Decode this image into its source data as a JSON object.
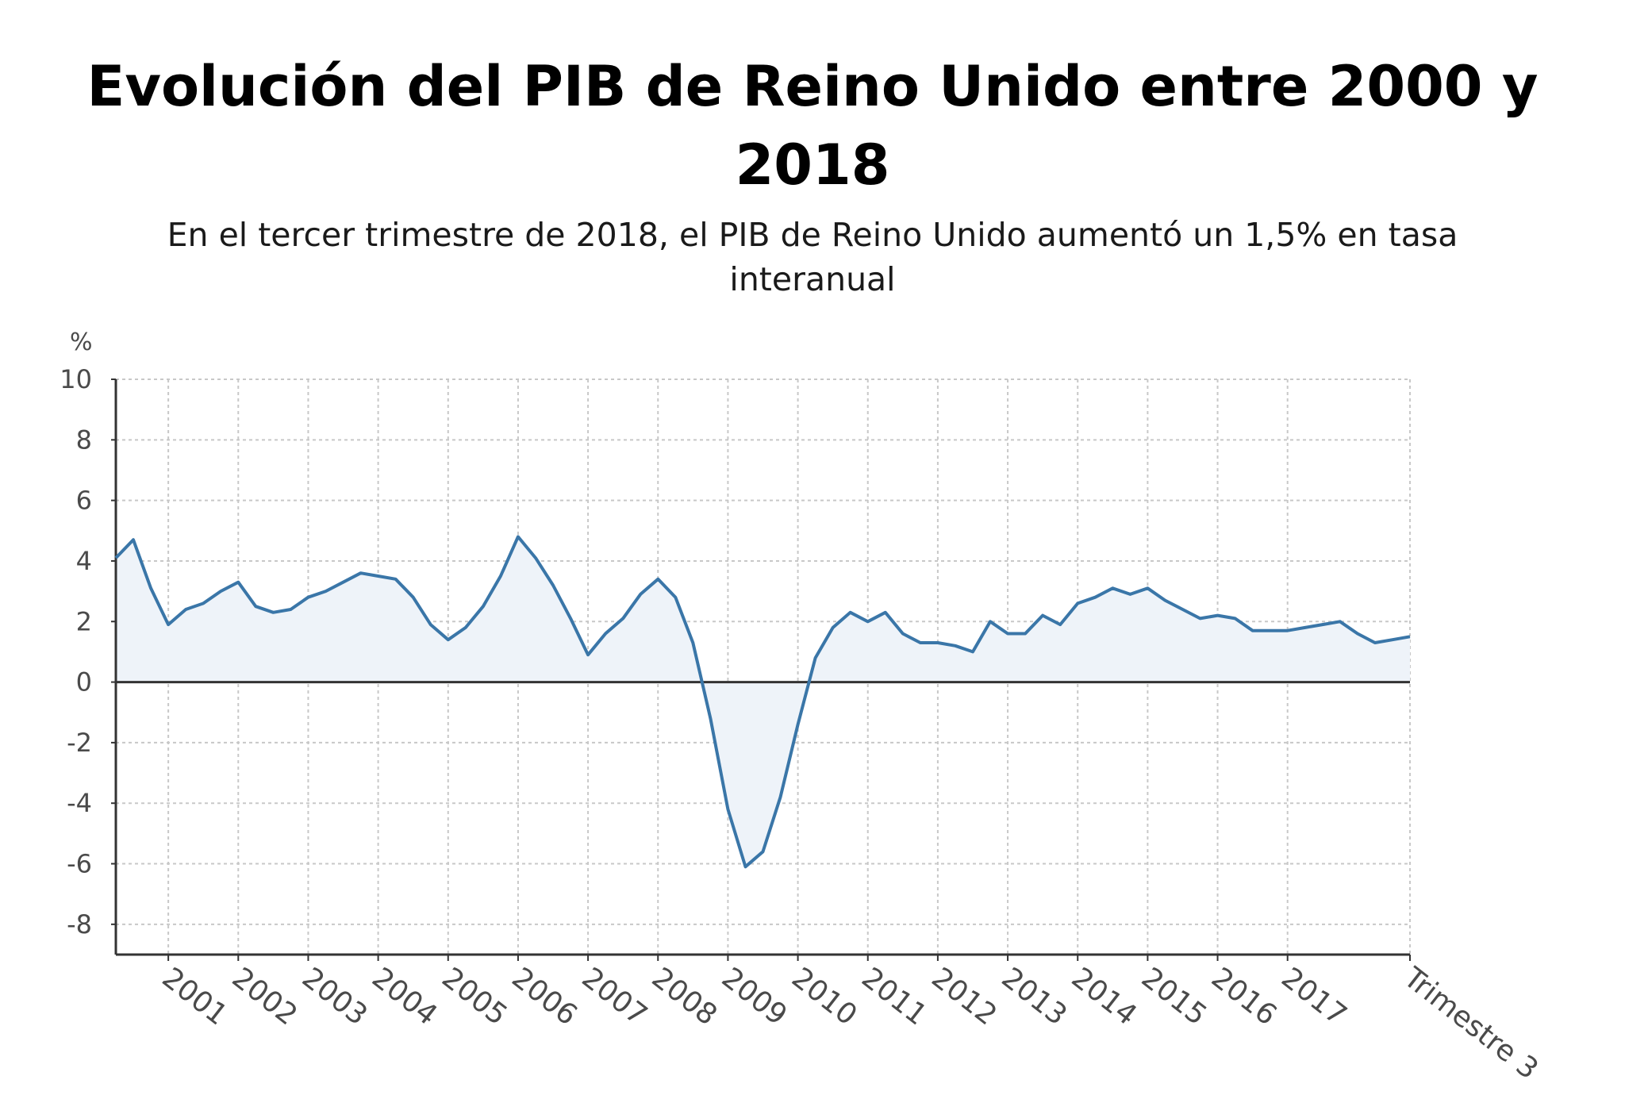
{
  "chart_data": {
    "type": "area",
    "title_line1": "Evolución del PIB de Reino Unido entre 2000 y",
    "title_line2": "2018",
    "subtitle_line1": "En el tercer trimestre de 2018, el PIB de Reino Unido aumentó un 1,5% en tasa",
    "subtitle_line2": "interanual",
    "ylabel": "%",
    "ylim": [
      -9,
      10
    ],
    "yticks": [
      "10",
      "8",
      "6",
      "4",
      "2",
      "0",
      "-2",
      "-4",
      "-6",
      "-8"
    ],
    "ytick_values": [
      10,
      8,
      6,
      4,
      2,
      0,
      -2,
      -4,
      -6,
      -8
    ],
    "xlim": [
      2000.0,
      2018.5
    ],
    "xtick_labels": [
      "2001",
      "2002",
      "2003",
      "2004",
      "2005",
      "2006",
      "2007",
      "2008",
      "2009",
      "2010",
      "2011",
      "2012",
      "2013",
      "2014",
      "2015",
      "2016",
      "2017",
      "Trimestre 3"
    ],
    "xtick_positions": [
      2000.75,
      2001.75,
      2002.75,
      2003.75,
      2004.75,
      2005.75,
      2006.75,
      2007.75,
      2008.75,
      2009.75,
      2010.75,
      2011.75,
      2012.75,
      2013.75,
      2014.75,
      2015.75,
      2016.75,
      2018.5
    ],
    "grid": true,
    "series": [
      {
        "color": "#3a76a8",
        "fill": "#eef3f9",
        "x": [
          2000.0,
          2000.25,
          2000.5,
          2000.75,
          2001.0,
          2001.25,
          2001.5,
          2001.75,
          2002.0,
          2002.25,
          2002.5,
          2002.75,
          2003.0,
          2003.25,
          2003.5,
          2003.75,
          2004.0,
          2004.25,
          2004.5,
          2004.75,
          2005.0,
          2005.25,
          2005.5,
          2005.75,
          2006.0,
          2006.25,
          2006.5,
          2006.75,
          2007.0,
          2007.25,
          2007.5,
          2007.75,
          2008.0,
          2008.25,
          2008.5,
          2008.75,
          2009.0,
          2009.25,
          2009.5,
          2009.75,
          2010.0,
          2010.25,
          2010.5,
          2010.75,
          2011.0,
          2011.25,
          2011.5,
          2011.75,
          2012.0,
          2012.25,
          2012.5,
          2012.75,
          2013.0,
          2013.25,
          2013.5,
          2013.75,
          2014.0,
          2014.25,
          2014.5,
          2014.75,
          2015.0,
          2015.25,
          2015.5,
          2015.75,
          2016.0,
          2016.25,
          2016.5,
          2016.75,
          2017.0,
          2017.25,
          2017.5,
          2017.75,
          2018.0,
          2018.25,
          2018.5
        ],
        "values": [
          4.1,
          4.7,
          3.1,
          1.9,
          2.4,
          2.6,
          3.0,
          3.3,
          2.5,
          2.3,
          2.4,
          2.8,
          3.0,
          3.3,
          3.6,
          3.5,
          3.4,
          2.8,
          1.9,
          1.4,
          1.8,
          2.5,
          3.5,
          4.8,
          4.1,
          3.2,
          2.1,
          0.9,
          1.6,
          2.1,
          2.9,
          3.4,
          2.8,
          1.3,
          -1.2,
          -4.2,
          -6.1,
          -5.6,
          -3.8,
          -1.4,
          0.8,
          1.8,
          2.3,
          2.0,
          2.3,
          1.6,
          1.3,
          1.3,
          1.2,
          1.0,
          2.0,
          1.6,
          1.6,
          2.2,
          1.9,
          2.6,
          2.8,
          3.1,
          2.9,
          3.1,
          2.7,
          2.4,
          2.1,
          2.2,
          2.1,
          1.7,
          1.7,
          1.7,
          1.8,
          1.9,
          2.0,
          1.6,
          1.3,
          1.4,
          1.5
        ]
      }
    ]
  }
}
